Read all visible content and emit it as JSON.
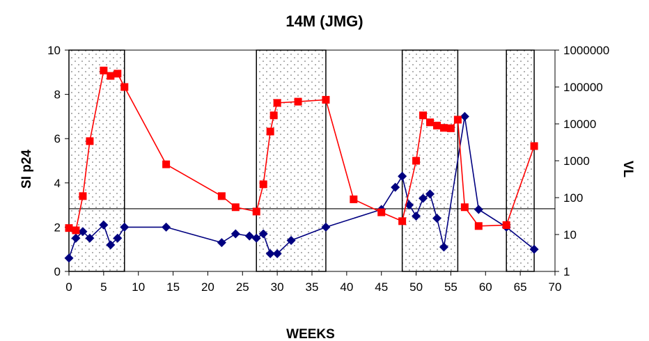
{
  "chart_data": {
    "type": "line",
    "title": "14M (JMG)",
    "xlabel": "WEEKS",
    "ylabel": "SI p24",
    "y2label": "VL",
    "xlim": [
      0,
      70
    ],
    "ylim": [
      0,
      10
    ],
    "y2lim": [
      1,
      1000000
    ],
    "y2scale": "log",
    "x_ticks": [
      "0",
      "5",
      "10",
      "15",
      "20",
      "25",
      "30",
      "35",
      "40",
      "45",
      "50",
      "55",
      "60",
      "65",
      "70"
    ],
    "y_ticks": [
      "0",
      "2",
      "4",
      "6",
      "8",
      "10"
    ],
    "y2_ticks": [
      "1",
      "10",
      "100",
      "1000",
      "10000",
      "100000",
      "1000000"
    ],
    "threshold_vl": 50,
    "shaded_periods": [
      [
        0,
        8
      ],
      [
        27,
        37
      ],
      [
        48,
        56
      ],
      [
        63,
        67
      ]
    ],
    "colors": {
      "si": "#000080",
      "vl": "#ff0000",
      "shading": "#ffffff",
      "dots": "#7a7a7a"
    },
    "series": [
      {
        "axis": "left",
        "marker": "diamond",
        "points": [
          [
            0,
            0.6
          ],
          [
            1,
            1.5
          ],
          [
            2,
            1.8
          ],
          [
            3,
            1.5
          ],
          [
            5,
            2.1
          ],
          [
            6,
            1.2
          ],
          [
            7,
            1.5
          ],
          [
            8,
            2.0
          ],
          [
            14,
            2.0
          ],
          [
            22,
            1.3
          ],
          [
            24,
            1.7
          ],
          [
            26,
            1.6
          ],
          [
            27,
            1.5
          ],
          [
            28,
            1.7
          ],
          [
            29,
            0.8
          ],
          [
            30,
            0.8
          ],
          [
            32,
            1.4
          ],
          [
            37,
            2.0
          ],
          [
            45,
            2.8
          ],
          [
            47,
            3.8
          ],
          [
            48,
            4.3
          ],
          [
            49,
            3.0
          ],
          [
            50,
            2.5
          ],
          [
            51,
            3.3
          ],
          [
            52,
            3.5
          ],
          [
            53,
            2.4
          ],
          [
            54,
            1.1
          ],
          [
            57,
            7.0
          ],
          [
            59,
            2.8
          ],
          [
            63,
            2.0
          ],
          [
            67,
            1.0
          ]
        ]
      },
      {
        "axis": "right",
        "marker": "square",
        "points": [
          [
            0,
            15
          ],
          [
            1,
            13
          ],
          [
            2,
            110
          ],
          [
            3,
            3400
          ],
          [
            5,
            280000
          ],
          [
            6,
            200000
          ],
          [
            7,
            230000
          ],
          [
            8,
            100000
          ],
          [
            14,
            800
          ],
          [
            22,
            110
          ],
          [
            24,
            55
          ],
          [
            27,
            42
          ],
          [
            28,
            230
          ],
          [
            29,
            6200
          ],
          [
            29.5,
            17000
          ],
          [
            30,
            37000
          ],
          [
            33,
            40000
          ],
          [
            37,
            45000
          ],
          [
            41,
            90
          ],
          [
            45,
            40
          ],
          [
            48,
            23
          ],
          [
            50,
            1000
          ],
          [
            51,
            17000
          ],
          [
            52,
            11000
          ],
          [
            53,
            9000
          ],
          [
            54,
            7800
          ],
          [
            55,
            7600
          ],
          [
            56,
            13000
          ],
          [
            57,
            55
          ],
          [
            59,
            17
          ],
          [
            63,
            18
          ],
          [
            67,
            2500
          ]
        ]
      }
    ]
  }
}
